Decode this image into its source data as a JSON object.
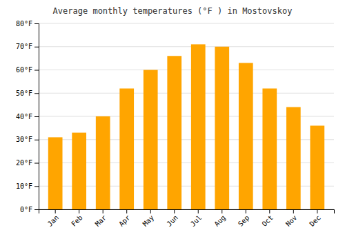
{
  "chart_data": {
    "type": "bar",
    "title": "Average monthly temperatures (°F ) in Mostovskoy",
    "categories": [
      "Jan",
      "Feb",
      "Mar",
      "Apr",
      "May",
      "Jun",
      "Jul",
      "Aug",
      "Sep",
      "Oct",
      "Nov",
      "Dec"
    ],
    "values": [
      31,
      33,
      40,
      52,
      60,
      66,
      71,
      70,
      63,
      52,
      44,
      36
    ],
    "color": "#FFA500",
    "ylim": [
      0,
      80
    ],
    "yticks": [
      {
        "value": 0,
        "label": "0°F"
      },
      {
        "value": 10,
        "label": "10°F"
      },
      {
        "value": 20,
        "label": "20°F"
      },
      {
        "value": 30,
        "label": "30°F"
      },
      {
        "value": 40,
        "label": "40°F"
      },
      {
        "value": 50,
        "label": "50°F"
      },
      {
        "value": 60,
        "label": "60°F"
      },
      {
        "value": 70,
        "label": "70°F"
      },
      {
        "value": 80,
        "label": "80°F"
      }
    ],
    "grid": true
  }
}
